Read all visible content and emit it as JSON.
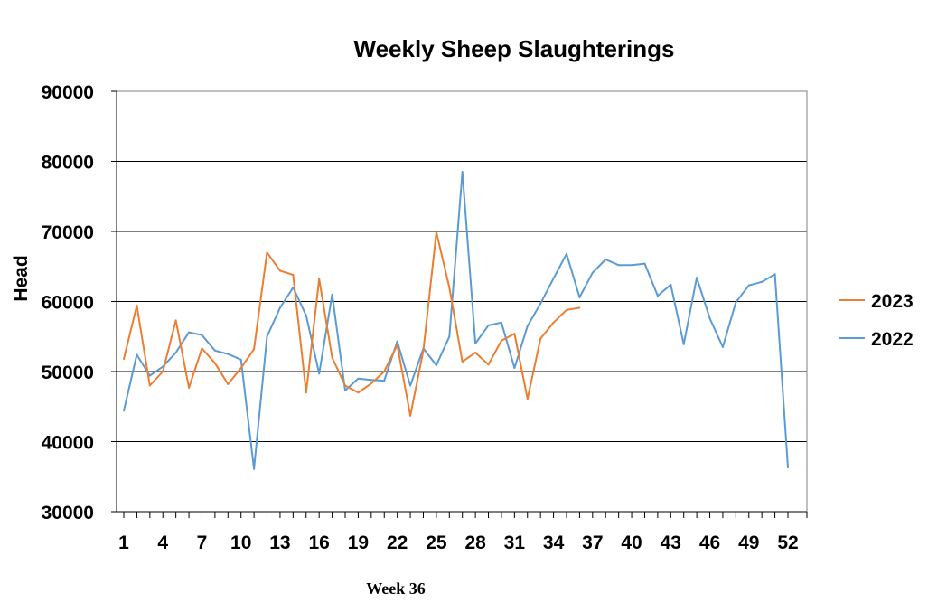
{
  "chart_data": {
    "type": "line",
    "title": "Weekly Sheep Slaughterings",
    "xlabel": "",
    "ylabel": "Head",
    "ylim": [
      30000,
      90000
    ],
    "yticks": [
      30000,
      40000,
      50000,
      60000,
      70000,
      80000,
      90000
    ],
    "xlim": [
      1,
      52
    ],
    "xticks": [
      1,
      4,
      7,
      10,
      13,
      16,
      19,
      22,
      25,
      28,
      31,
      34,
      37,
      40,
      43,
      46,
      49,
      52
    ],
    "grid": "horizontal",
    "legend": "right",
    "footer": "Week 36",
    "series": [
      {
        "name": "2023",
        "color": "#ED7D31",
        "values": [
          51800,
          59400,
          48000,
          50000,
          57300,
          47700,
          53300,
          51200,
          48200,
          50500,
          53200,
          67000,
          64400,
          63800,
          47000,
          63200,
          52000,
          48000,
          47000,
          48300,
          50000,
          53800,
          43700,
          53000,
          69900,
          62000,
          51400,
          52700,
          51000,
          54400,
          55400,
          46100,
          54700,
          57000,
          58800,
          59100
        ]
      },
      {
        "name": "2022",
        "color": "#5B9BD5",
        "values": [
          44400,
          52400,
          49400,
          50700,
          52700,
          55600,
          55200,
          53000,
          52500,
          51700,
          36100,
          55000,
          59100,
          62000,
          58000,
          49700,
          61000,
          47300,
          49000,
          48800,
          48700,
          54300,
          48000,
          53300,
          50900,
          55000,
          78500,
          54000,
          56600,
          57000,
          50500,
          56500,
          59700,
          63300,
          66800,
          60600,
          64100,
          66000,
          65200,
          65200,
          65400,
          60800,
          62400,
          53900,
          63400,
          57600,
          53500,
          59900,
          62300,
          62800,
          63900,
          36300
        ]
      }
    ]
  }
}
